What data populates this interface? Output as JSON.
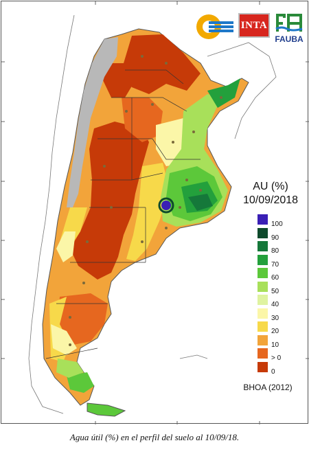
{
  "logos": {
    "inta_text": "INTA",
    "fauba_text": "FAUBA"
  },
  "legend": {
    "title": "AU (%)",
    "date": "10/09/2018",
    "source": "BHOA (2012)",
    "classes": [
      {
        "label": "100",
        "color": "#3a1fb5"
      },
      {
        "label": "90",
        "color": "#0e4a2c"
      },
      {
        "label": "80",
        "color": "#15783a"
      },
      {
        "label": "70",
        "color": "#23a03c"
      },
      {
        "label": "60",
        "color": "#5cc83a"
      },
      {
        "label": "50",
        "color": "#a8e05a"
      },
      {
        "label": "40",
        "color": "#dff3a0"
      },
      {
        "label": "30",
        "color": "#fbf6a8"
      },
      {
        "label": "20",
        "color": "#f7d94a"
      },
      {
        "label": "10",
        "color": "#f2a43a"
      },
      {
        "label": "> 0",
        "color": "#e6671f"
      },
      {
        "label": "0",
        "color": "#c63a08"
      }
    ]
  },
  "caption": "Agua útil (%) en el perfil del suelo al 10/09/18."
}
